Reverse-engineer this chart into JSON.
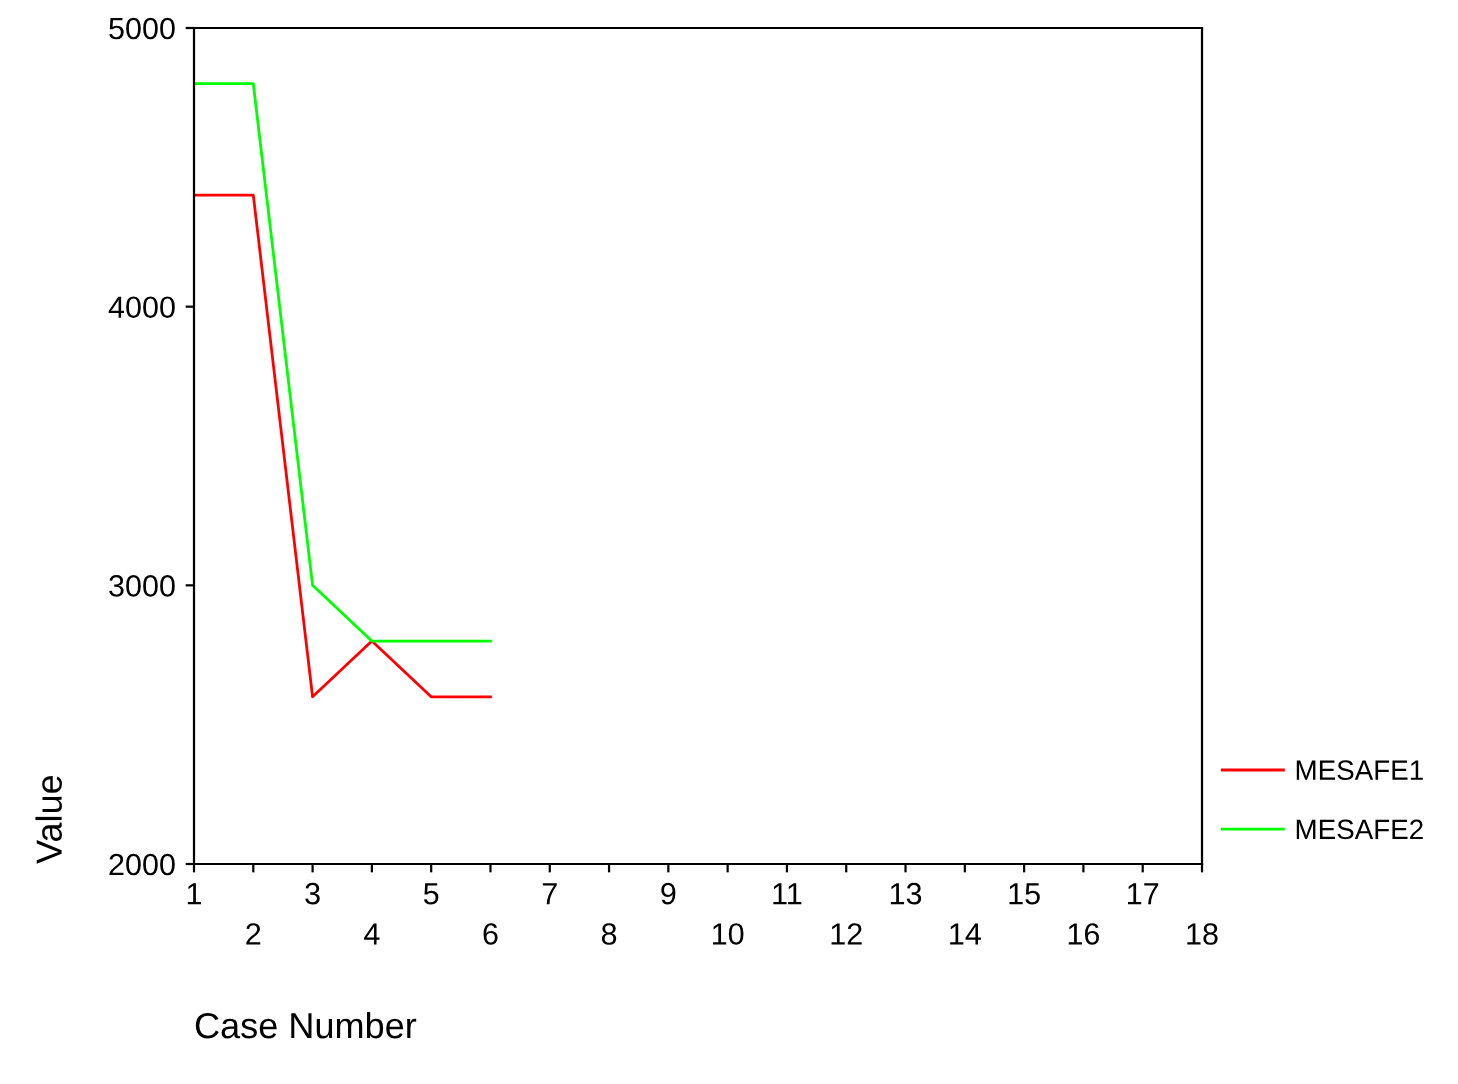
{
  "chart_data": {
    "type": "line",
    "xlabel": "Case Number",
    "ylabel": "Value",
    "categories": [
      "1",
      "2",
      "3",
      "4",
      "5",
      "6",
      "7",
      "8",
      "9",
      "10",
      "11",
      "12",
      "13",
      "14",
      "15",
      "16",
      "17",
      "18"
    ],
    "series": [
      {
        "name": "MESAFE1",
        "color": "#ff0000",
        "values": [
          4400,
          4400,
          2600,
          2800,
          2600,
          2600,
          null,
          null,
          null,
          null,
          null,
          null,
          null,
          null,
          null,
          null,
          null,
          null
        ]
      },
      {
        "name": "MESAFE2",
        "color": "#00ff00",
        "values": [
          4800,
          4800,
          3000,
          2800,
          2800,
          2800,
          null,
          null,
          null,
          null,
          null,
          null,
          null,
          null,
          null,
          null,
          null,
          null
        ]
      }
    ],
    "ylim": [
      2000,
      5000
    ],
    "yticks": [
      2000,
      3000,
      4000,
      5000
    ],
    "grid": false,
    "legend": "right",
    "line_style": "solid"
  }
}
